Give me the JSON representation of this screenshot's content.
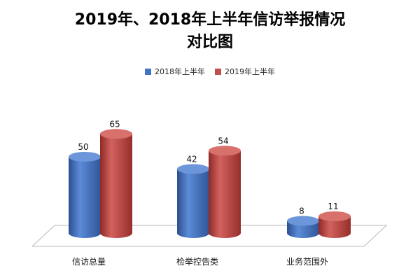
{
  "chart_data": {
    "type": "bar",
    "title_line1": "2019年、2018年上半年信访举报情况",
    "title_line2": "对比图",
    "categories": [
      "信访总量",
      "检举控告类",
      "业务范围外"
    ],
    "series": [
      {
        "name": "2018年上半年",
        "values": [
          50,
          42,
          8
        ],
        "color": "#4472c4"
      },
      {
        "name": "2019年上半年",
        "values": [
          65,
          54,
          11
        ],
        "color": "#c0504d"
      }
    ],
    "ylim": [
      0,
      65
    ],
    "legend_position": "top",
    "style": "3d-cylinder"
  }
}
